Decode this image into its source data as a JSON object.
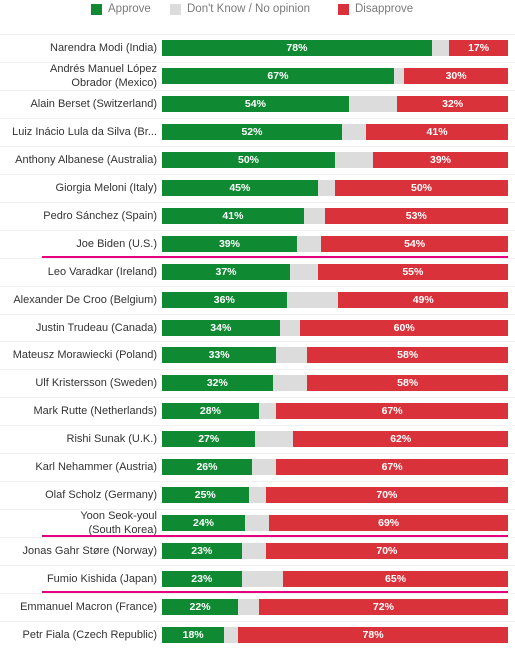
{
  "chart_data": {
    "type": "bar",
    "orientation": "horizontal",
    "stacked": true,
    "legend": {
      "placement": "top",
      "entries": [
        {
          "name": "Approve",
          "color": "#0f8a32"
        },
        {
          "name": "Don't Know / No opinion",
          "color": "#dcdcdc"
        },
        {
          "name": "Disapprove",
          "color": "#d9323a"
        }
      ]
    },
    "rows": [
      {
        "label": "Narendra Modi (India)",
        "approve": 78,
        "disapprove": 17,
        "highlight": false
      },
      {
        "label": "Andrés Manuel López\nObrador (Mexico)",
        "approve": 67,
        "disapprove": 30,
        "highlight": false
      },
      {
        "label": "Alain Berset (Switzerland)",
        "approve": 54,
        "disapprove": 32,
        "highlight": false
      },
      {
        "label": "Luiz Inácio Lula da Silva (Br...",
        "approve": 52,
        "disapprove": 41,
        "highlight": false
      },
      {
        "label": "Anthony Albanese (Australia)",
        "approve": 50,
        "disapprove": 39,
        "highlight": false
      },
      {
        "label": "Giorgia Meloni (Italy)",
        "approve": 45,
        "disapprove": 50,
        "highlight": false
      },
      {
        "label": "Pedro Sánchez (Spain)",
        "approve": 41,
        "disapprove": 53,
        "highlight": false
      },
      {
        "label": "Joe Biden (U.S.)",
        "approve": 39,
        "disapprove": 54,
        "highlight": true
      },
      {
        "label": "Leo Varadkar (Ireland)",
        "approve": 37,
        "disapprove": 55,
        "highlight": false
      },
      {
        "label": "Alexander De Croo (Belgium)",
        "approve": 36,
        "disapprove": 49,
        "highlight": false
      },
      {
        "label": "Justin Trudeau (Canada)",
        "approve": 34,
        "disapprove": 60,
        "highlight": false
      },
      {
        "label": "Mateusz Morawiecki (Poland)",
        "approve": 33,
        "disapprove": 58,
        "highlight": false
      },
      {
        "label": "Ulf Kristersson (Sweden)",
        "approve": 32,
        "disapprove": 58,
        "highlight": false
      },
      {
        "label": "Mark Rutte (Netherlands)",
        "approve": 28,
        "disapprove": 67,
        "highlight": false
      },
      {
        "label": "Rishi Sunak (U.K.)",
        "approve": 27,
        "disapprove": 62,
        "highlight": false
      },
      {
        "label": "Karl Nehammer (Austria)",
        "approve": 26,
        "disapprove": 67,
        "highlight": false
      },
      {
        "label": "Olaf Scholz (Germany)",
        "approve": 25,
        "disapprove": 70,
        "highlight": false
      },
      {
        "label": "Yoon Seok-youl\n(South Korea)",
        "approve": 24,
        "disapprove": 69,
        "highlight": true
      },
      {
        "label": "Jonas Gahr Støre (Norway)",
        "approve": 23,
        "disapprove": 70,
        "highlight": false
      },
      {
        "label": "Fumio Kishida (Japan)",
        "approve": 23,
        "disapprove": 65,
        "highlight": true
      },
      {
        "label": "Emmanuel Macron (France)",
        "approve": 22,
        "disapprove": 72,
        "highlight": false
      },
      {
        "label": "Petr Fiala (Czech Republic)",
        "approve": 18,
        "disapprove": 78,
        "highlight": false
      }
    ]
  }
}
